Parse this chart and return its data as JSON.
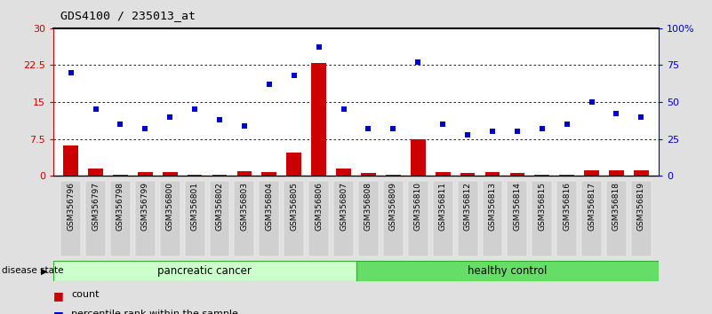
{
  "title": "GDS4100 / 235013_at",
  "samples": [
    "GSM356796",
    "GSM356797",
    "GSM356798",
    "GSM356799",
    "GSM356800",
    "GSM356801",
    "GSM356802",
    "GSM356803",
    "GSM356804",
    "GSM356805",
    "GSM356806",
    "GSM356807",
    "GSM356808",
    "GSM356809",
    "GSM356810",
    "GSM356811",
    "GSM356812",
    "GSM356813",
    "GSM356814",
    "GSM356815",
    "GSM356816",
    "GSM356817",
    "GSM356818",
    "GSM356819"
  ],
  "count_values": [
    6.2,
    1.5,
    0.3,
    0.8,
    0.8,
    0.2,
    0.2,
    1.0,
    0.8,
    4.8,
    23.0,
    1.5,
    0.6,
    0.3,
    7.5,
    0.8,
    0.6,
    0.8,
    0.6,
    0.3,
    0.2,
    1.2,
    1.2,
    1.2
  ],
  "percentile_values": [
    70,
    45,
    35,
    32,
    40,
    45,
    38,
    34,
    62,
    68,
    87,
    45,
    32,
    32,
    77,
    35,
    28,
    30,
    30,
    32,
    35,
    50,
    42,
    40
  ],
  "group1_label": "pancreatic cancer",
  "group2_label": "healthy control",
  "group1_count": 12,
  "legend_count": "count",
  "legend_percentile": "percentile rank within the sample",
  "left_color": "#cc0000",
  "right_color": "#0000cc",
  "group1_color": "#ccffcc",
  "group2_color": "#66dd66",
  "bar_color": "#cc0000",
  "dot_color": "#0000cc",
  "ylim_left": [
    0,
    30
  ],
  "ylim_right": [
    0,
    100
  ],
  "yticks_left": [
    0,
    7.5,
    15,
    22.5,
    30
  ],
  "ytick_labels_left": [
    "0",
    "7.5",
    "15",
    "22.5",
    "30"
  ],
  "yticks_right": [
    0,
    25,
    50,
    75,
    100
  ],
  "ytick_labels_right": [
    "0",
    "25",
    "50",
    "75",
    "100%"
  ],
  "disease_state_label": "disease state",
  "background_color": "#e0e0e0",
  "plot_bg_color": "#ffffff",
  "xtick_bg_color": "#d0d0d0"
}
